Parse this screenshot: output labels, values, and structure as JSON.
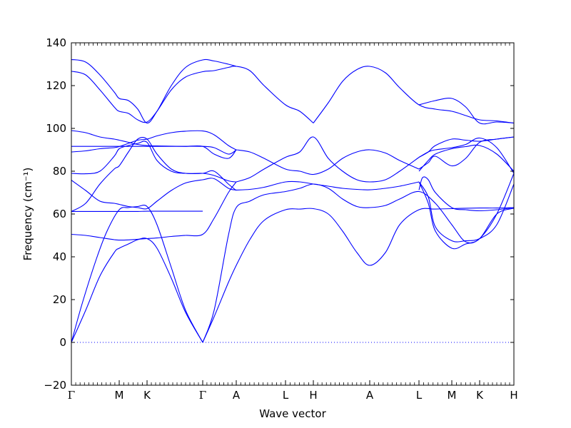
{
  "chart_data": {
    "type": "line",
    "title": "",
    "xlabel": "Wave vector",
    "ylabel": "Frequency (cm⁻¹)",
    "ylim": [
      -20,
      140
    ],
    "yticks": [
      -20,
      0,
      20,
      40,
      60,
      80,
      100,
      120,
      140
    ],
    "xlim": [
      0,
      1
    ],
    "grid": false,
    "line_color": "#0000ff",
    "zero_line": {
      "y": 0,
      "style": "dotted",
      "color": "#0000ff"
    },
    "high_symmetry_points": [
      {
        "label": "Γ",
        "x": 0.0
      },
      {
        "label": "M",
        "x": 0.1081
      },
      {
        "label": "K",
        "x": 0.171
      },
      {
        "label": "Γ",
        "x": 0.2968
      },
      {
        "label": "A",
        "x": 0.3726
      },
      {
        "label": "L",
        "x": 0.4839
      },
      {
        "label": "H",
        "x": 0.5468
      },
      {
        "label": "A",
        "x": 0.6742
      },
      {
        "label": "L",
        "x": 0.7855
      },
      {
        "label": "M",
        "x": 0.8597
      },
      {
        "label": "K",
        "x": 0.9226
      },
      {
        "label": "H",
        "x": 1.0
      }
    ],
    "series": [
      {
        "x": [
          0.0,
          0.0242,
          0.0565,
          0.0806,
          0.1081,
          0.129,
          0.15,
          0.171,
          0.1935,
          0.2258,
          0.2581,
          0.2968
        ],
        "y": [
          0,
          18,
          39,
          52,
          62,
          63,
          63.5,
          63.5,
          55,
          35,
          15,
          0
        ]
      },
      {
        "x": [
          0.0,
          0.0323,
          0.0645,
          0.0968,
          0.1081,
          0.129,
          0.15,
          0.171,
          0.1935,
          0.2258,
          0.2581,
          0.2968
        ],
        "y": [
          0,
          15,
          31,
          42,
          44,
          46,
          48,
          48.5,
          44,
          30,
          14,
          0
        ]
      },
      {
        "x": [
          0.2968,
          0.3226,
          0.3548,
          0.3726,
          0.4032,
          0.4355,
          0.4839,
          0.5161,
          0.5468,
          0.5806,
          0.6129,
          0.6452,
          0.6742,
          0.7097,
          0.7419,
          0.7855,
          0.8226,
          0.8597,
          0.8911,
          0.9226,
          0.9613,
          1.0
        ],
        "y": [
          0,
          12,
          28,
          36,
          48,
          57,
          62,
          62.3,
          62.5,
          60,
          52,
          42,
          36,
          42,
          55,
          62,
          62.3,
          62.5,
          62.7,
          62.8,
          62.8,
          63
        ]
      },
      {
        "x": [
          0.2968,
          0.3226,
          0.3548,
          0.3726,
          0.4032,
          0.4355,
          0.4839,
          0.5161,
          0.5468,
          0.5806,
          0.6129,
          0.6452,
          0.6742,
          0.7097,
          0.7419,
          0.7855,
          0.8226,
          0.8597,
          0.8911,
          0.9226,
          0.9613,
          1.0
        ],
        "y": [
          0,
          15,
          50,
          63,
          66,
          69,
          70.5,
          72,
          74,
          72,
          67,
          63.5,
          63,
          64,
          67,
          70.5,
          65,
          55,
          47,
          48.5,
          60,
          62.7
        ]
      },
      {
        "x": [
          0.0,
          0.0323,
          0.0645,
          0.0968,
          0.1081,
          0.129,
          0.15,
          0.171,
          0.1935,
          0.2258,
          0.2581,
          0.2968
        ],
        "y": [
          61.2,
          61.2,
          61.2,
          61.2,
          61.2,
          61.2,
          61.2,
          61.3,
          61.3,
          61.3,
          61.3,
          61.3
        ]
      },
      {
        "x": [
          0.0,
          0.0323,
          0.0645,
          0.0968,
          0.1081,
          0.129,
          0.15,
          0.171,
          0.1935,
          0.2258,
          0.2581,
          0.2968,
          0.3226,
          0.3548,
          0.3726
        ],
        "y": [
          50.5,
          50,
          49,
          48,
          47.8,
          47.9,
          48.2,
          48.5,
          48.8,
          49.5,
          50,
          50.5,
          58,
          70,
          75
        ]
      },
      {
        "x": [
          0.0,
          0.0323,
          0.0645,
          0.0968,
          0.1081,
          0.129,
          0.15,
          0.171,
          0.1935,
          0.2258,
          0.2581,
          0.2968,
          0.3226,
          0.3548,
          0.3726
        ],
        "y": [
          75.8,
          71,
          66,
          65,
          64.5,
          63.5,
          63,
          62.5,
          66,
          71,
          74.5,
          76,
          76.5,
          72,
          71.2
        ]
      },
      {
        "x": [
          0.0,
          0.0323,
          0.0645,
          0.0968,
          0.1081,
          0.129,
          0.15,
          0.171,
          0.1935,
          0.2258,
          0.2581,
          0.2968,
          0.3226,
          0.3548,
          0.3726
        ],
        "y": [
          61.2,
          65,
          74,
          81,
          82.5,
          89,
          95,
          95,
          88,
          81,
          79,
          79,
          78,
          75.5,
          75
        ]
      },
      {
        "x": [
          0.0,
          0.0323,
          0.0645,
          0.0968,
          0.1081,
          0.129,
          0.15,
          0.171,
          0.1935,
          0.2258,
          0.2581,
          0.2968,
          0.3226,
          0.3548,
          0.3726
        ],
        "y": [
          79,
          78.8,
          80,
          87,
          90.5,
          92,
          93,
          93.5,
          85,
          80,
          79,
          79,
          80,
          74,
          71
        ]
      },
      {
        "x": [
          0.0,
          0.0323,
          0.0645,
          0.0968,
          0.1081,
          0.129,
          0.15,
          0.171,
          0.1935,
          0.2258,
          0.2581,
          0.2968,
          0.3226,
          0.3548,
          0.3726
        ],
        "y": [
          89,
          89.5,
          90.5,
          91,
          91.5,
          93,
          94.5,
          95,
          96.5,
          98,
          98.7,
          98.8,
          97,
          92,
          90
        ]
      },
      {
        "x": [
          0.0,
          0.0323,
          0.0645,
          0.0968,
          0.1081,
          0.129,
          0.15,
          0.171,
          0.1935,
          0.2258,
          0.2581,
          0.2968,
          0.3226,
          0.3548,
          0.3726
        ],
        "y": [
          99,
          98,
          96,
          95,
          94.5,
          93.5,
          92.5,
          92,
          91.8,
          91.7,
          91.6,
          91.6,
          88,
          86,
          90
        ]
      },
      {
        "x": [
          0.0,
          0.0323,
          0.0645,
          0.0968,
          0.1081,
          0.129,
          0.15,
          0.171,
          0.1935,
          0.2258,
          0.2581,
          0.2968,
          0.3226,
          0.3548,
          0.3726
        ],
        "y": [
          91.6,
          91.6,
          91.6,
          91.6,
          91.6,
          91.6,
          91.6,
          91.6,
          91.6,
          91.6,
          91.6,
          91.6,
          91,
          88,
          90
        ]
      },
      {
        "x": [
          0.3726,
          0.4032,
          0.4355,
          0.4839,
          0.5161,
          0.5468,
          0.5806,
          0.6129,
          0.6452,
          0.6742,
          0.7097,
          0.7419,
          0.7855
        ],
        "y": [
          71.2,
          71.5,
          72.5,
          75,
          75,
          74,
          73,
          72,
          71.5,
          71.3,
          72,
          73,
          75
        ]
      },
      {
        "x": [
          0.3726,
          0.4032,
          0.4355,
          0.4839,
          0.5161,
          0.5468,
          0.5806,
          0.6129,
          0.6452,
          0.6742,
          0.7097,
          0.7419,
          0.7855
        ],
        "y": [
          75,
          77,
          81,
          86.5,
          89,
          96,
          86,
          80,
          76,
          75,
          76,
          80,
          86.5
        ]
      },
      {
        "x": [
          0.3726,
          0.4032,
          0.4355,
          0.4839,
          0.5161,
          0.5468,
          0.5806,
          0.6129,
          0.6452,
          0.6742,
          0.7097,
          0.7419,
          0.7855
        ],
        "y": [
          90,
          89,
          86,
          81,
          80,
          78.5,
          81,
          86,
          89,
          90,
          88.5,
          85,
          81
        ]
      },
      {
        "x": [
          0.7855,
          0.7935,
          0.8065,
          0.8226,
          0.8597,
          0.8911,
          0.9226,
          0.9613,
          1.0
        ],
        "y": [
          71.2,
          77,
          76,
          70,
          63,
          62,
          61.5,
          62,
          63
        ]
      },
      {
        "x": [
          0.7855,
          0.8065,
          0.8226,
          0.8597,
          0.8911,
          0.9226,
          0.9613,
          1.0
        ],
        "y": [
          75,
          68,
          54,
          47.5,
          47.5,
          48.5,
          55,
          74
        ]
      },
      {
        "x": [
          0.7855,
          0.8065,
          0.8226,
          0.8597,
          0.8911,
          0.9226,
          0.9613,
          1.0
        ],
        "y": [
          75,
          65,
          52,
          44,
          46,
          48.5,
          60,
          79
        ]
      },
      {
        "x": [
          0.7855,
          0.8065,
          0.8226,
          0.8597,
          0.8911,
          0.9226,
          0.9613,
          1.0
        ],
        "y": [
          80,
          85,
          88,
          90.5,
          91.5,
          92,
          88,
          80
        ]
      },
      {
        "x": [
          0.7855,
          0.8065,
          0.8226,
          0.8597,
          0.8911,
          0.9226,
          0.9613,
          1.0
        ],
        "y": [
          86.5,
          89,
          90,
          91,
          92.5,
          95.5,
          91,
          79
        ]
      },
      {
        "x": [
          0.7855,
          0.8065,
          0.8226,
          0.8597,
          0.8911,
          0.9226,
          0.9613,
          1.0
        ],
        "y": [
          81,
          84,
          87,
          82.5,
          86,
          93.5,
          95,
          96
        ]
      },
      {
        "x": [
          0.7855,
          0.8065,
          0.8226,
          0.8597,
          0.8911,
          0.9226,
          0.9613,
          1.0
        ],
        "y": [
          86.5,
          89,
          92,
          95,
          94.5,
          94,
          95,
          96
        ]
      },
      {
        "x": [
          0.0,
          0.0323,
          0.0645,
          0.0968,
          0.1081,
          0.129,
          0.15,
          0.171,
          0.1935,
          0.2258,
          0.2581,
          0.2968,
          0.3226,
          0.3548,
          0.3726,
          0.4032,
          0.4355,
          0.4839,
          0.5161,
          0.5468
        ],
        "y": [
          126.7,
          125,
          118,
          110,
          108,
          107,
          104,
          103,
          108,
          118,
          124,
          126.5,
          127,
          128.5,
          129,
          127,
          120,
          111,
          108,
          102.5
        ]
      },
      {
        "x": [
          0.0,
          0.0323,
          0.0645,
          0.0968,
          0.1081,
          0.129,
          0.15,
          0.171,
          0.1935,
          0.2258,
          0.2581,
          0.2968,
          0.3226,
          0.3548,
          0.3726
        ],
        "y": [
          132.2,
          131,
          125,
          117,
          114,
          113,
          109,
          102.5,
          108,
          120,
          128.5,
          132,
          131.5,
          130,
          129
        ]
      },
      {
        "x": [
          0.5468,
          0.5806,
          0.6129,
          0.6452,
          0.6742,
          0.7097,
          0.7419,
          0.7855,
          0.8226,
          0.8597,
          0.8911,
          0.9226,
          0.9613,
          1.0
        ],
        "y": [
          102.5,
          112,
          122,
          127.5,
          129,
          126,
          119,
          111,
          109,
          108,
          106,
          104,
          103.5,
          102.5
        ]
      },
      {
        "x": [
          0.7855,
          0.8226,
          0.8597,
          0.8911,
          0.9226,
          0.9613,
          1.0
        ],
        "y": [
          111,
          113,
          114,
          110,
          102.5,
          103,
          102.5
        ]
      }
    ]
  }
}
